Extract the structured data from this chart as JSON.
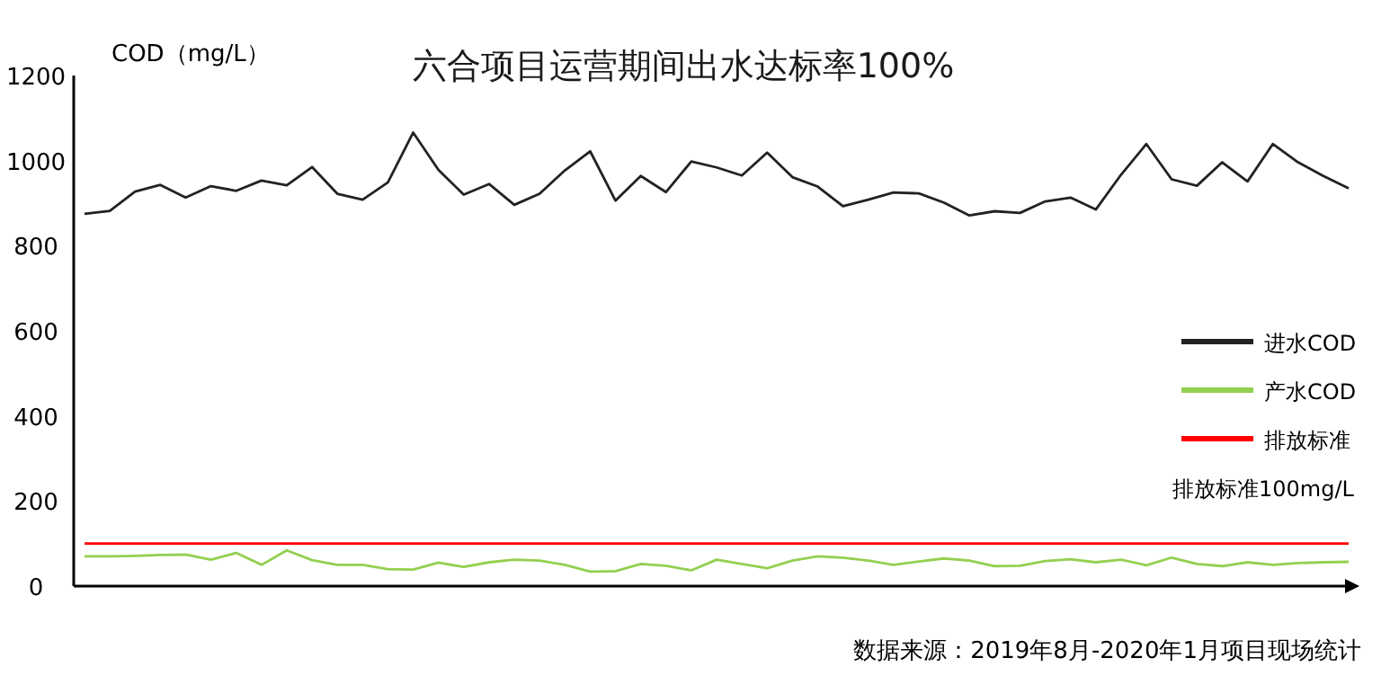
{
  "chart_data": {
    "type": "line",
    "title": "六合项目运营期间出水达标率100%",
    "ylabel": "COD（mg/L）",
    "categories": [
      null,
      null,
      null,
      null,
      null,
      null,
      null,
      null,
      null,
      null,
      null,
      null,
      null,
      null,
      null,
      null,
      null,
      null,
      null,
      null,
      null,
      null,
      null,
      null,
      null,
      null,
      null,
      null,
      null,
      null,
      null,
      null,
      null,
      null,
      null,
      null,
      null,
      null,
      null,
      null,
      null,
      null,
      null,
      null,
      null,
      null,
      null,
      null,
      null,
      null,
      null
    ],
    "ylim": [
      0,
      1200
    ],
    "yticks": [
      0,
      200,
      400,
      600,
      800,
      1000,
      1200
    ],
    "tick_labels": "y",
    "legend": "right",
    "marker": "none",
    "line_style": "solid",
    "series": [
      {
        "name": "进水COD",
        "color": "#222222",
        "values": [
          875,
          882,
          927,
          943,
          913,
          940,
          929,
          953,
          942,
          985,
          922,
          908,
          949,
          1066,
          978,
          920,
          945,
          896,
          922,
          977,
          1022,
          906,
          964,
          926,
          998,
          984,
          965,
          1019,
          961,
          939,
          893,
          908,
          925,
          923,
          901,
          871,
          881,
          877,
          904,
          913,
          885,
          967,
          1039,
          956,
          941,
          996,
          951,
          1039,
          996,
          964,
          935
        ]
      },
      {
        "name": "产水COD",
        "color": "#92d050",
        "values": [
          70,
          70,
          71,
          73,
          74,
          62,
          78,
          50,
          84,
          61,
          50,
          50,
          40,
          39,
          55,
          45,
          56,
          62,
          60,
          50,
          34,
          35,
          52,
          48,
          37,
          62,
          52,
          42,
          60,
          70,
          67,
          60,
          50,
          58,
          65,
          60,
          47,
          48,
          59,
          63,
          56,
          62,
          49,
          67,
          52,
          47,
          56,
          50,
          54,
          56,
          57
        ]
      }
    ],
    "ref_lines": [
      {
        "axis": "y",
        "value": 100,
        "label": "排放标准",
        "color": "#ff0000",
        "line_style": "solid"
      }
    ],
    "annotations": [
      "排放标准100mg/L",
      "数据来源：2019年8月-2020年1月项目现场统计"
    ]
  }
}
